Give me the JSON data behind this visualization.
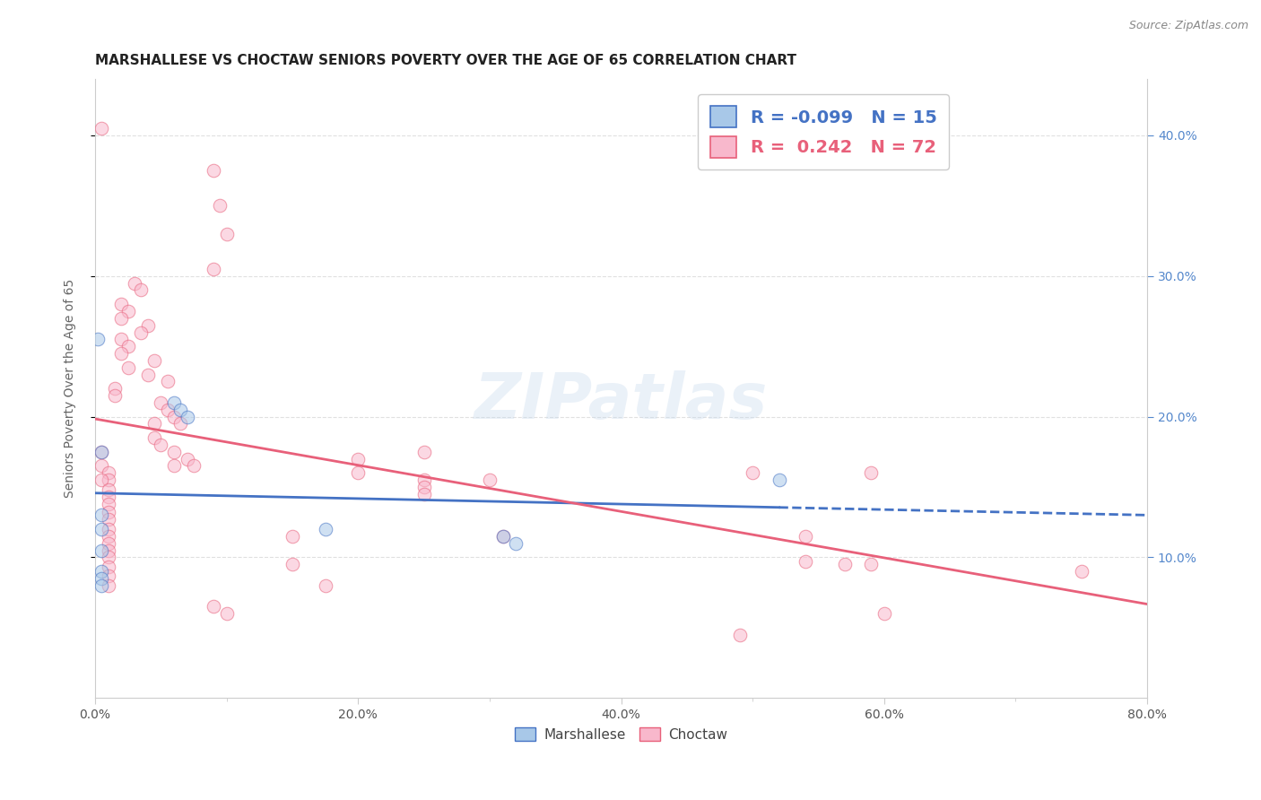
{
  "title": "MARSHALLESE VS CHOCTAW SENIORS POVERTY OVER THE AGE OF 65 CORRELATION CHART",
  "source": "Source: ZipAtlas.com",
  "ylabel_label": "Seniors Poverty Over the Age of 65",
  "legend_labels": [
    "Marshallese",
    "Choctaw"
  ],
  "legend_r_n": [
    {
      "r": "-0.099",
      "n": "15"
    },
    {
      "r": "0.242",
      "n": "72"
    }
  ],
  "watermark": "ZIPatlas",
  "xlim": [
    0.0,
    0.8
  ],
  "ylim": [
    0.0,
    0.44
  ],
  "x_ticks": [
    0.0,
    0.1,
    0.2,
    0.3,
    0.4,
    0.5,
    0.6,
    0.7,
    0.8
  ],
  "x_tick_labels_show": [
    0.0,
    0.2,
    0.4,
    0.6,
    0.8
  ],
  "y_ticks": [
    0.1,
    0.2,
    0.3,
    0.4
  ],
  "marshallese_points": [
    [
      0.002,
      0.255
    ],
    [
      0.005,
      0.175
    ],
    [
      0.06,
      0.21
    ],
    [
      0.065,
      0.205
    ],
    [
      0.07,
      0.2
    ],
    [
      0.005,
      0.13
    ],
    [
      0.005,
      0.12
    ],
    [
      0.005,
      0.105
    ],
    [
      0.005,
      0.09
    ],
    [
      0.005,
      0.085
    ],
    [
      0.005,
      0.08
    ],
    [
      0.175,
      0.12
    ],
    [
      0.31,
      0.115
    ],
    [
      0.32,
      0.11
    ],
    [
      0.52,
      0.155
    ]
  ],
  "choctaw_points": [
    [
      0.005,
      0.405
    ],
    [
      0.09,
      0.375
    ],
    [
      0.095,
      0.35
    ],
    [
      0.1,
      0.33
    ],
    [
      0.03,
      0.295
    ],
    [
      0.035,
      0.29
    ],
    [
      0.02,
      0.28
    ],
    [
      0.025,
      0.275
    ],
    [
      0.02,
      0.27
    ],
    [
      0.04,
      0.265
    ],
    [
      0.035,
      0.26
    ],
    [
      0.02,
      0.255
    ],
    [
      0.025,
      0.25
    ],
    [
      0.045,
      0.24
    ],
    [
      0.025,
      0.235
    ],
    [
      0.02,
      0.245
    ],
    [
      0.04,
      0.23
    ],
    [
      0.055,
      0.225
    ],
    [
      0.015,
      0.22
    ],
    [
      0.015,
      0.215
    ],
    [
      0.05,
      0.21
    ],
    [
      0.055,
      0.205
    ],
    [
      0.09,
      0.305
    ],
    [
      0.06,
      0.2
    ],
    [
      0.065,
      0.195
    ],
    [
      0.045,
      0.195
    ],
    [
      0.045,
      0.185
    ],
    [
      0.05,
      0.18
    ],
    [
      0.06,
      0.175
    ],
    [
      0.07,
      0.17
    ],
    [
      0.075,
      0.165
    ],
    [
      0.06,
      0.165
    ],
    [
      0.005,
      0.175
    ],
    [
      0.005,
      0.165
    ],
    [
      0.01,
      0.16
    ],
    [
      0.01,
      0.155
    ],
    [
      0.005,
      0.155
    ],
    [
      0.01,
      0.148
    ],
    [
      0.01,
      0.143
    ],
    [
      0.01,
      0.138
    ],
    [
      0.01,
      0.132
    ],
    [
      0.01,
      0.127
    ],
    [
      0.01,
      0.12
    ],
    [
      0.01,
      0.115
    ],
    [
      0.01,
      0.11
    ],
    [
      0.01,
      0.105
    ],
    [
      0.01,
      0.1
    ],
    [
      0.01,
      0.093
    ],
    [
      0.01,
      0.087
    ],
    [
      0.01,
      0.08
    ],
    [
      0.15,
      0.115
    ],
    [
      0.15,
      0.095
    ],
    [
      0.175,
      0.08
    ],
    [
      0.2,
      0.17
    ],
    [
      0.2,
      0.16
    ],
    [
      0.25,
      0.175
    ],
    [
      0.25,
      0.155
    ],
    [
      0.25,
      0.15
    ],
    [
      0.25,
      0.145
    ],
    [
      0.3,
      0.155
    ],
    [
      0.31,
      0.115
    ],
    [
      0.5,
      0.16
    ],
    [
      0.54,
      0.115
    ],
    [
      0.54,
      0.097
    ],
    [
      0.57,
      0.095
    ],
    [
      0.6,
      0.06
    ],
    [
      0.75,
      0.09
    ],
    [
      0.09,
      0.065
    ],
    [
      0.1,
      0.06
    ],
    [
      0.49,
      0.045
    ],
    [
      0.59,
      0.16
    ],
    [
      0.59,
      0.095
    ]
  ],
  "marshallese_color": "#a8c8e8",
  "choctaw_color": "#f8b8cc",
  "marshallese_line_color": "#4472c4",
  "choctaw_line_color": "#e8607a",
  "background_color": "#ffffff",
  "grid_color": "#e0e0e0",
  "title_fontsize": 11,
  "axis_label_fontsize": 10,
  "tick_fontsize": 10,
  "marker_size": 110,
  "marker_alpha": 0.55,
  "watermark_color": "#c5d8ec",
  "watermark_fontsize": 52,
  "watermark_alpha": 0.35
}
